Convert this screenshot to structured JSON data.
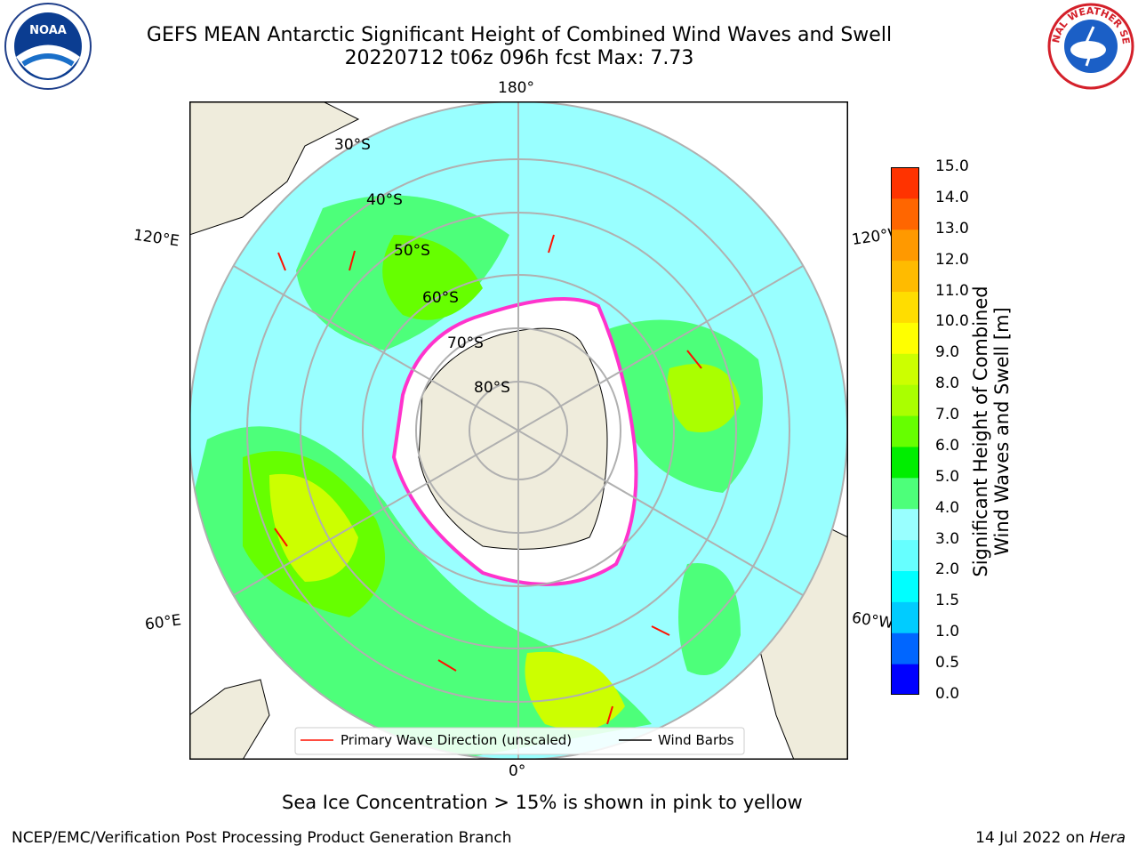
{
  "title": {
    "line1": "GEFS MEAN Antarctic Significant Height of Combined Wind Waves and Swell",
    "line2": "20220712 t06z 096h fcst   Max: 7.73"
  },
  "logos": {
    "left": {
      "name": "noaa-logo",
      "text": "NOAA"
    },
    "right": {
      "name": "nws-logo",
      "text": "NATIONAL WEATHER SERVICE"
    }
  },
  "map": {
    "projection": "south-polar-stereographic",
    "longitude_labels": {
      "top": "180°",
      "bottom": "0°",
      "upper_left": "120°E",
      "upper_right": "120°W",
      "lower_left": "60°E",
      "lower_right": "60°W"
    },
    "latitude_labels": [
      "30°S",
      "40°S",
      "50°S",
      "60°S",
      "70°S",
      "80°S"
    ],
    "colors": {
      "land": "#efecdc",
      "ocean_low": "#99ffff",
      "ocean_mid": "#4dff7a",
      "sea_ice_edge": "#ff33cc",
      "arrow": "#ff1100"
    }
  },
  "legend": {
    "primary_wave": "Primary Wave Direction (unscaled)",
    "wind_barbs": "Wind Barbs"
  },
  "colorbar": {
    "title_line1": "Significant Height of Combined",
    "title_line2": "Wind Waves and Swell [m]",
    "ticks": [
      "0.0",
      "0.5",
      "1.0",
      "1.5",
      "2.0",
      "3.0",
      "4.0",
      "5.0",
      "6.0",
      "7.0",
      "8.0",
      "9.0",
      "10.0",
      "11.0",
      "12.0",
      "13.0",
      "14.0",
      "15.0"
    ],
    "colors": [
      "#0000ff",
      "#0066ff",
      "#00ccff",
      "#00ffff",
      "#66ffff",
      "#99ffff",
      "#4dff7a",
      "#00ee00",
      "#66ff00",
      "#aaff00",
      "#ccff00",
      "#ffff00",
      "#ffdd00",
      "#ffbb00",
      "#ff9900",
      "#ff6600",
      "#ff3300"
    ]
  },
  "sea_ice_note": "Sea Ice Concentration > 15% is shown in pink to yellow",
  "footer": {
    "credit": "NCEP/EMC/Verification Post Processing Product Generation Branch",
    "date_prefix": "14 Jul 2022 on ",
    "host": "Hera"
  }
}
